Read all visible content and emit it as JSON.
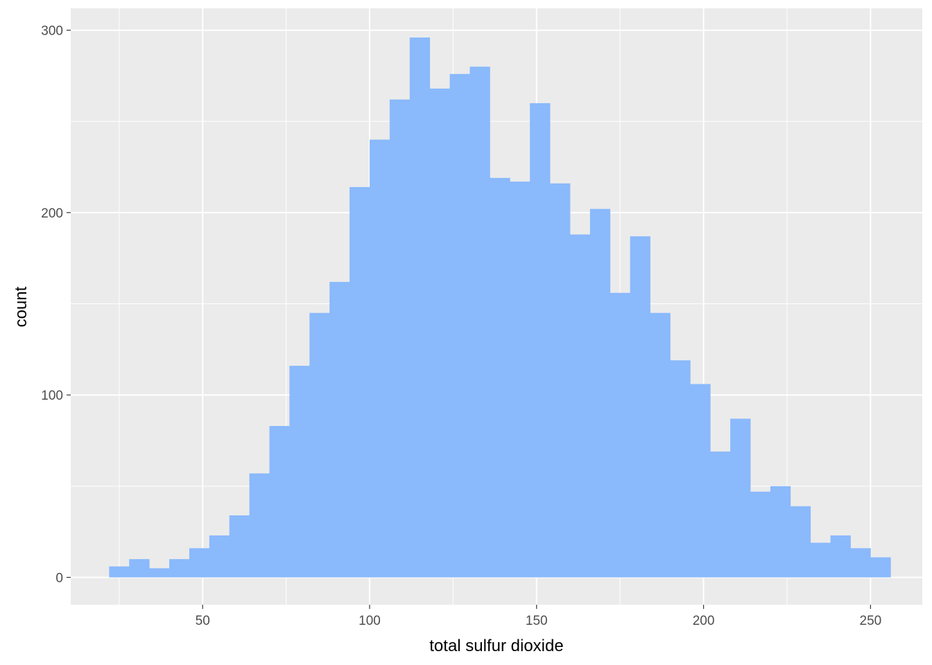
{
  "chart_data": {
    "type": "bar",
    "title": "",
    "xlabel": "total sulfur dioxide",
    "ylabel": "count",
    "xlim": [
      10.5,
      265.5
    ],
    "ylim": [
      -15,
      312
    ],
    "x_ticks": [
      50,
      100,
      150,
      200,
      250
    ],
    "y_ticks": [
      0,
      100,
      200,
      300
    ],
    "bin_width": 6,
    "bin_starts": [
      22,
      28,
      34,
      40,
      46,
      52,
      58,
      64,
      70,
      76,
      82,
      88,
      94,
      100,
      106,
      112,
      118,
      124,
      130,
      136,
      142,
      148,
      154,
      160,
      166,
      172,
      178,
      184,
      190,
      196,
      202,
      208,
      214,
      220,
      226,
      232,
      238,
      244,
      250
    ],
    "values": [
      6,
      10,
      5,
      10,
      16,
      23,
      34,
      57,
      83,
      116,
      145,
      162,
      214,
      240,
      262,
      296,
      268,
      276,
      280,
      219,
      217,
      260,
      216,
      188,
      202,
      156,
      187,
      145,
      119,
      106,
      69,
      87,
      47,
      50,
      39,
      19,
      23,
      16,
      11
    ],
    "fill_color": "#8ab9fc",
    "panel_color": "#ebebeb",
    "grid_color": "#ffffff",
    "grid": true,
    "legend": "none"
  }
}
